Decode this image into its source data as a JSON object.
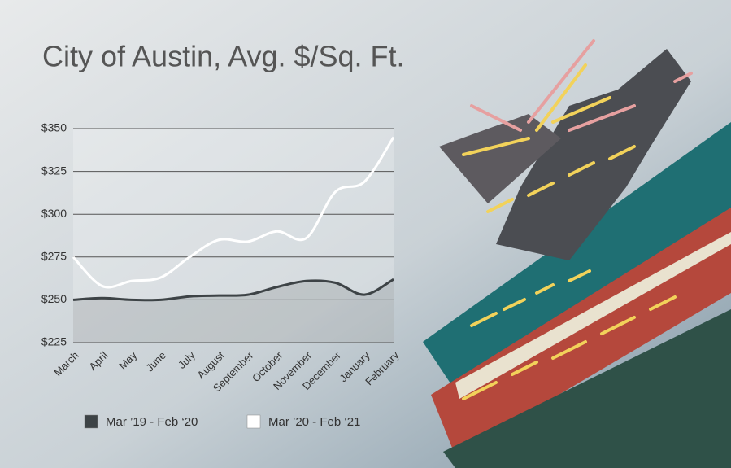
{
  "chart_data": {
    "type": "line",
    "title": "City of Austin, Avg. $/Sq. Ft.",
    "categories": [
      "March",
      "April",
      "May",
      "June",
      "July",
      "August",
      "September",
      "October",
      "November",
      "December",
      "January",
      "February"
    ],
    "series": [
      {
        "name": "Mar ’19 - Feb ‘20",
        "color": "#3d4346",
        "values": [
          250,
          251,
          250,
          250,
          252,
          252.5,
          253,
          257.5,
          261,
          260,
          253,
          262
        ]
      },
      {
        "name": "Mar ’20 - Feb ‘21",
        "color": "#ffffff",
        "values": [
          275,
          258,
          261,
          263,
          275,
          285,
          284,
          290,
          286,
          313,
          319,
          345
        ]
      }
    ],
    "ylim": [
      225,
      350
    ],
    "yticks": [
      {
        "value": 225,
        "label": "$225"
      },
      {
        "value": 250,
        "label": "$250"
      },
      {
        "value": 275,
        "label": "$275"
      },
      {
        "value": 300,
        "label": "$300"
      },
      {
        "value": 325,
        "label": "$325"
      },
      {
        "value": 350,
        "label": "$350"
      }
    ],
    "grid": true
  }
}
